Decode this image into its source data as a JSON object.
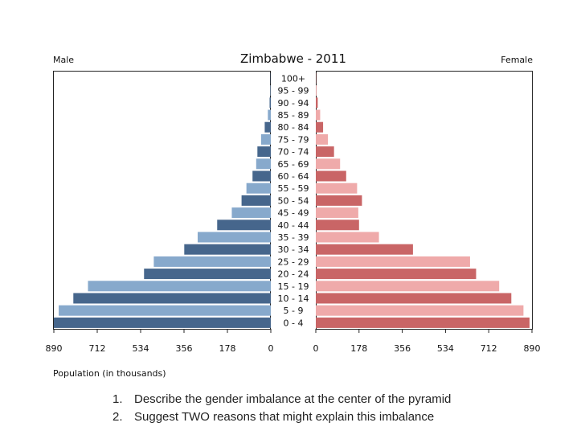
{
  "chart_data": {
    "type": "bar",
    "title": "Zimbabwe - 2011",
    "left_label": "Male",
    "right_label": "Female",
    "xlabel": "Population (in thousands)",
    "xlim": [
      0,
      890
    ],
    "left_ticks": [
      "890",
      "712",
      "534",
      "356",
      "178",
      "0"
    ],
    "right_ticks": [
      "0",
      "178",
      "356",
      "534",
      "712",
      "890"
    ],
    "categories": [
      "0 - 4",
      "5 - 9",
      "10 - 14",
      "15 - 19",
      "20 - 24",
      "25 - 29",
      "30 - 34",
      "35 - 39",
      "40 - 44",
      "45 - 49",
      "50 - 54",
      "55 - 59",
      "60 - 64",
      "65 - 69",
      "70 - 74",
      "75 - 79",
      "80 - 84",
      "85 - 89",
      "90 - 94",
      "95 - 99",
      "100+"
    ],
    "series": [
      {
        "name": "Male",
        "values": [
          890,
          870,
          810,
          750,
          520,
          480,
          355,
          300,
          220,
          160,
          120,
          100,
          75,
          60,
          55,
          40,
          25,
          12,
          5,
          2,
          1
        ]
      },
      {
        "name": "Female",
        "values": [
          880,
          855,
          805,
          755,
          660,
          635,
          400,
          260,
          178,
          175,
          190,
          170,
          125,
          100,
          75,
          50,
          30,
          18,
          8,
          3,
          1
        ]
      }
    ],
    "colors": {
      "male_dark": "#46668c",
      "male_light": "#87a9cc",
      "female_dark": "#c96566",
      "female_light": "#efaaaa"
    },
    "grid": false
  },
  "questions": [
    {
      "number": "1.",
      "text": "Describe the gender imbalance at the center of the pyramid"
    },
    {
      "number": "2.",
      "text": "Suggest TWO reasons that might explain this imbalance"
    }
  ]
}
